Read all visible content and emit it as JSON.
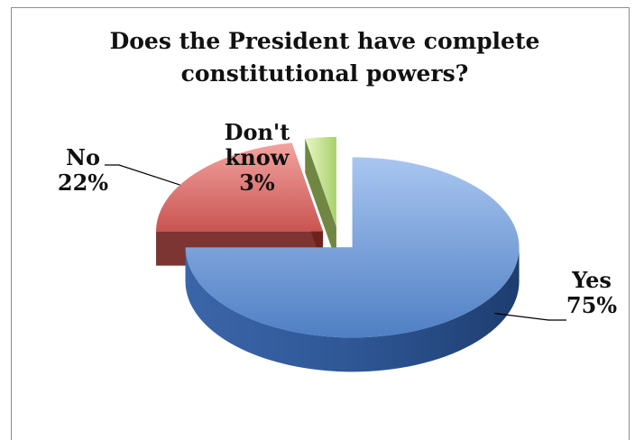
{
  "chart_data": {
    "type": "pie",
    "title": "Does the President have complete constitutional powers?",
    "slices": [
      {
        "label": "Yes",
        "value": 75,
        "value_label": "75%",
        "color": "#5b8ed6",
        "exploded": true
      },
      {
        "label": "No",
        "value": 22,
        "value_label": "22%",
        "color": "#c0504d",
        "exploded": true
      },
      {
        "label": "Don't know",
        "label_lines": [
          "Don't",
          "know"
        ],
        "value": 3,
        "value_label": "3%",
        "color": "#9bbb59",
        "exploded": true
      }
    ],
    "style": "3d-exploded",
    "legend": "none"
  }
}
